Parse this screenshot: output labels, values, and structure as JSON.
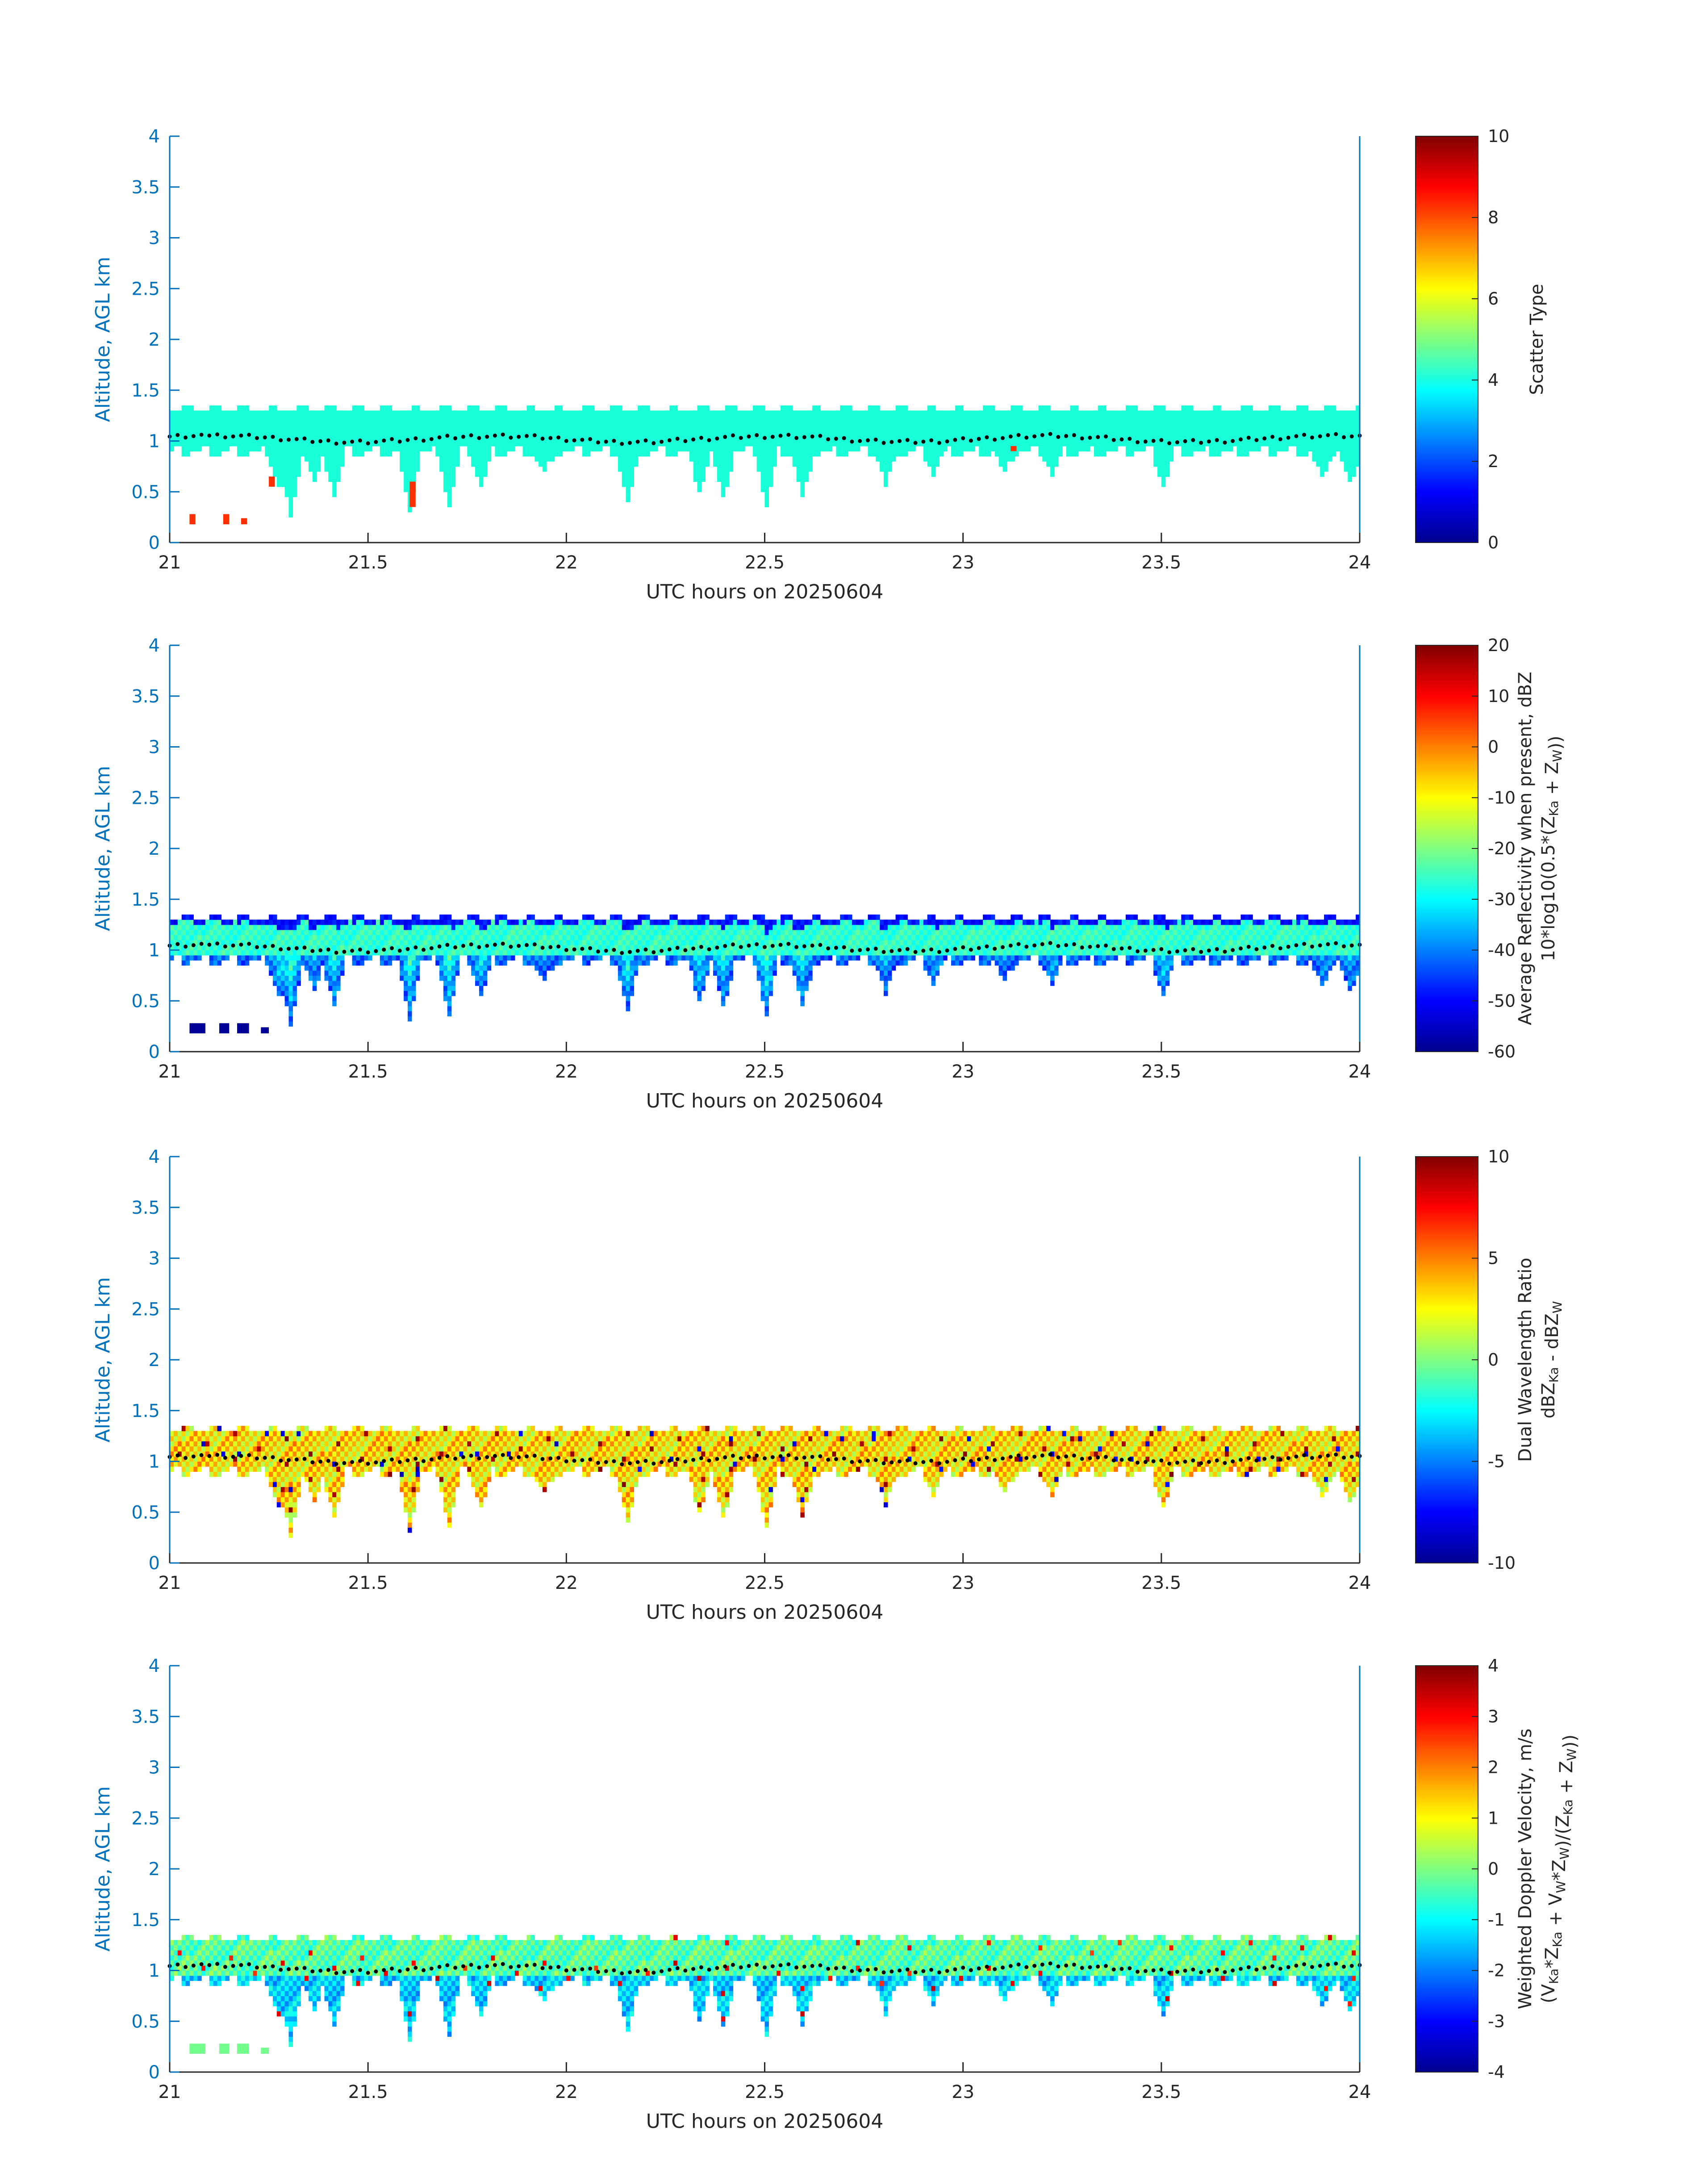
{
  "colors": {
    "axis_blue": "#0072BD",
    "text_dark": "#262626",
    "colormap": "jet",
    "scatter_cloud": "#19ffd8",
    "scatter_precip": "#ff4010",
    "cloud_base_marker": "#000000"
  },
  "chart_data": [
    {
      "type": "heatmap",
      "xlabel": "UTC hours on 20250604",
      "ylabel": "Altitude, AGL km",
      "xlim": [
        21,
        24
      ],
      "ylim": [
        0,
        4
      ],
      "xticks": [
        "21",
        "21.5",
        "22",
        "22.5",
        "23",
        "23.5",
        "24"
      ],
      "yticks": [
        "0",
        "0.5",
        "1",
        "1.5",
        "2",
        "2.5",
        "3",
        "3.5",
        "4"
      ],
      "colorbar": {
        "label_lines": [
          "Scatter Type"
        ],
        "range": [
          0,
          10
        ],
        "ticks": [
          "0",
          "2",
          "4",
          "6",
          "8",
          "10"
        ]
      },
      "field": "scatter_type",
      "cloud_value": 4.2,
      "precip_value": 8.3,
      "precip_patches": [
        {
          "t0": 21.05,
          "t1": 21.065,
          "z0": 0.18,
          "z1": 0.28
        },
        {
          "t0": 21.135,
          "t1": 21.15,
          "z0": 0.18,
          "z1": 0.28
        },
        {
          "t0": 21.18,
          "t1": 21.195,
          "z0": 0.18,
          "z1": 0.24
        },
        {
          "t0": 21.25,
          "t1": 21.265,
          "z0": 0.55,
          "z1": 0.65
        },
        {
          "t0": 21.605,
          "t1": 21.62,
          "z0": 0.35,
          "z1": 0.6
        },
        {
          "t0": 23.12,
          "t1": 23.135,
          "z0": 0.9,
          "z1": 0.95
        }
      ]
    },
    {
      "type": "heatmap",
      "xlabel": "UTC hours on 20250604",
      "ylabel": "Altitude, AGL km",
      "xlim": [
        21,
        24
      ],
      "ylim": [
        0,
        4
      ],
      "xticks": [
        "21",
        "21.5",
        "22",
        "22.5",
        "23",
        "23.5",
        "24"
      ],
      "yticks": [
        "0",
        "0.5",
        "1",
        "1.5",
        "2",
        "2.5",
        "3",
        "3.5",
        "4"
      ],
      "colorbar": {
        "label_lines": [
          "Average Reflectivity when present, dBZ",
          "10*log10(0.5*(Z_Ka + Z_W))"
        ],
        "range": [
          -60,
          20
        ],
        "ticks": [
          "-60",
          "-50",
          "-40",
          "-30",
          "-20",
          "-10",
          "0",
          "10",
          "20"
        ]
      },
      "field": "reflectivity",
      "top_value": -52,
      "core_value": -26,
      "base_value": -48,
      "low_patch_value": -58
    },
    {
      "type": "heatmap",
      "xlabel": "UTC hours on 20250604",
      "ylabel": "Altitude, AGL km",
      "xlim": [
        21,
        24
      ],
      "ylim": [
        0,
        4
      ],
      "xticks": [
        "21",
        "21.5",
        "22",
        "22.5",
        "23",
        "23.5",
        "24"
      ],
      "yticks": [
        "0",
        "0.5",
        "1",
        "1.5",
        "2",
        "2.5",
        "3",
        "3.5",
        "4"
      ],
      "colorbar": {
        "label_lines": [
          "Dual Wavelength Ratio",
          "dBZ_Ka - dBZ_W"
        ],
        "range": [
          -10,
          10
        ],
        "ticks": [
          "-10",
          "-5",
          "0",
          "5",
          "10"
        ]
      },
      "field": "dwr",
      "typical_value": 3,
      "spread": 2.5
    },
    {
      "type": "heatmap",
      "xlabel": "UTC hours on 20250604",
      "ylabel": "Altitude, AGL km",
      "xlim": [
        21,
        24
      ],
      "ylim": [
        0,
        4
      ],
      "xticks": [
        "21",
        "21.5",
        "22",
        "22.5",
        "23",
        "23.5",
        "24"
      ],
      "yticks": [
        "0",
        "0.5",
        "1",
        "1.5",
        "2",
        "2.5",
        "3",
        "3.5",
        "4"
      ],
      "colorbar": {
        "label_lines": [
          "Weighted Doppler Velocity, m/s",
          "(V_Ka*Z_Ka + V_W*Z_W)/(Z_Ka + Z_W))"
        ],
        "range": [
          -4,
          4
        ],
        "ticks": [
          "-4",
          "-3",
          "-2",
          "-1",
          "0",
          "1",
          "2",
          "3",
          "4"
        ]
      },
      "field": "doppler_velocity",
      "typical_value": -0.3,
      "lower_value": -1.4,
      "low_patch_value": -0.1
    }
  ],
  "cloud_layer": {
    "time_start": 21.0,
    "time_end": 24.0,
    "gap_start": 21.09,
    "gap_end": 21.1,
    "top_km": 1.3,
    "base_km_range": [
      0.85,
      0.98
    ],
    "lowest_base_km": 0.3,
    "cloud_base_dots_km": 1.02
  },
  "low_patches_km": [
    {
      "t0": 21.05,
      "t1": 21.09,
      "z0": 0.18,
      "z1": 0.28
    },
    {
      "t0": 21.125,
      "t1": 21.15,
      "z0": 0.18,
      "z1": 0.28
    },
    {
      "t0": 21.17,
      "t1": 21.2,
      "z0": 0.18,
      "z1": 0.28
    },
    {
      "t0": 21.23,
      "t1": 21.25,
      "z0": 0.18,
      "z1": 0.24
    }
  ],
  "low_base_samples": [
    [
      21.27,
      0.55
    ],
    [
      21.3,
      0.3
    ],
    [
      21.36,
      0.62
    ],
    [
      21.41,
      0.48
    ],
    [
      21.6,
      0.33
    ],
    [
      21.7,
      0.37
    ],
    [
      21.78,
      0.55
    ],
    [
      21.94,
      0.72
    ],
    [
      22.15,
      0.42
    ],
    [
      22.33,
      0.5
    ],
    [
      22.39,
      0.46
    ],
    [
      22.5,
      0.36
    ],
    [
      22.59,
      0.45
    ],
    [
      22.8,
      0.6
    ],
    [
      22.92,
      0.7
    ],
    [
      23.1,
      0.72
    ],
    [
      23.22,
      0.7
    ],
    [
      23.5,
      0.55
    ],
    [
      23.9,
      0.68
    ],
    [
      23.97,
      0.62
    ]
  ]
}
